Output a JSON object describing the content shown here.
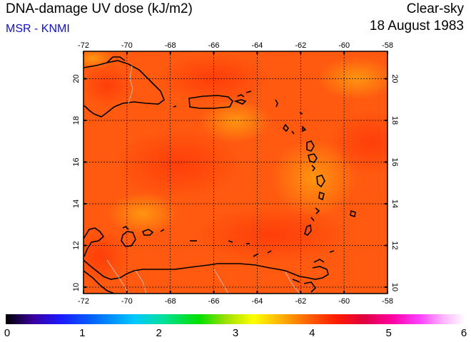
{
  "header": {
    "title": "DNA-damage UV dose (kJ/m2)",
    "subtitle": "MSR - KNMI",
    "mode": "Clear-sky",
    "date": "18 August 1983"
  },
  "map": {
    "lon_ticks": [
      "-72",
      "-70",
      "-68",
      "-66",
      "-64",
      "-62",
      "-60",
      "-58"
    ],
    "lat_ticks": [
      "10",
      "12",
      "14",
      "16",
      "18",
      "20"
    ],
    "colors": {
      "base": "#ff5a10",
      "high": "#ff3a08",
      "low": "#ff9a10",
      "coast": "#000000",
      "border": "#c8c8c8"
    }
  },
  "colorbar": {
    "labels": [
      "0",
      "1",
      "2",
      "3",
      "4",
      "5",
      "6"
    ]
  }
}
